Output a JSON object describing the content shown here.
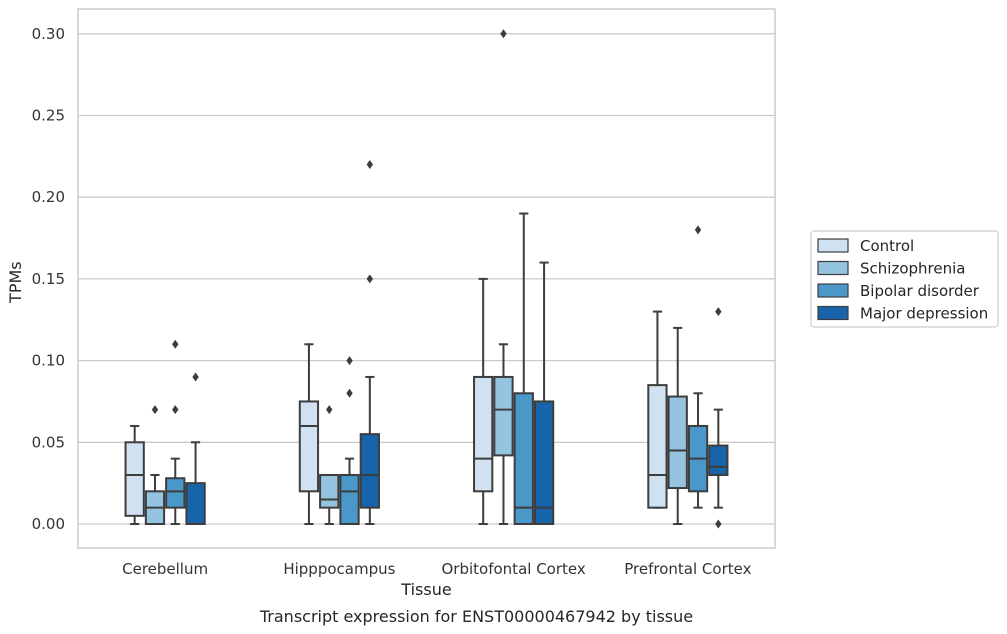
{
  "caption": "Transcript expression for ENST00000467942 by tissue",
  "chart_data": {
    "type": "box",
    "xlabel": "Tissue",
    "ylabel": "TPMs",
    "ylim": [
      -0.015,
      0.315
    ],
    "yticks": [
      "0.00",
      "0.05",
      "0.10",
      "0.15",
      "0.20",
      "0.25",
      "0.30"
    ],
    "grid": "horizontal",
    "legend_position": "right",
    "categories": [
      "Cerebellum",
      "Hipppocampus",
      "Orbitofontal Cortex",
      "Prefrontal Cortex"
    ],
    "colors": {
      "Control": "#d0e1f2",
      "Schizophrenia": "#94c4df",
      "Bipolar disorder": "#4a98c9",
      "Major depression": "#1764ab"
    },
    "series": [
      {
        "name": "Control",
        "boxes": [
          {
            "whislo": 0.0,
            "q1": 0.005,
            "med": 0.03,
            "q3": 0.05,
            "whishi": 0.06,
            "fliers": []
          },
          {
            "whislo": 0.0,
            "q1": 0.02,
            "med": 0.06,
            "q3": 0.075,
            "whishi": 0.11,
            "fliers": []
          },
          {
            "whislo": 0.0,
            "q1": 0.02,
            "med": 0.04,
            "q3": 0.09,
            "whishi": 0.15,
            "fliers": []
          },
          {
            "whislo": 0.01,
            "q1": 0.01,
            "med": 0.03,
            "q3": 0.085,
            "whishi": 0.13,
            "fliers": []
          }
        ]
      },
      {
        "name": "Schizophrenia",
        "boxes": [
          {
            "whislo": 0.0,
            "q1": 0.0,
            "med": 0.01,
            "q3": 0.02,
            "whishi": 0.03,
            "fliers": [
              0.07
            ]
          },
          {
            "whislo": 0.0,
            "q1": 0.01,
            "med": 0.015,
            "q3": 0.03,
            "whishi": 0.03,
            "fliers": [
              0.07
            ]
          },
          {
            "whislo": 0.0,
            "q1": 0.042,
            "med": 0.07,
            "q3": 0.09,
            "whishi": 0.11,
            "fliers": [
              0.3
            ]
          },
          {
            "whislo": 0.0,
            "q1": 0.022,
            "med": 0.045,
            "q3": 0.078,
            "whishi": 0.12,
            "fliers": []
          }
        ]
      },
      {
        "name": "Bipolar disorder",
        "boxes": [
          {
            "whislo": 0.0,
            "q1": 0.01,
            "med": 0.02,
            "q3": 0.028,
            "whishi": 0.04,
            "fliers": [
              0.07,
              0.11
            ]
          },
          {
            "whislo": 0.0,
            "q1": 0.0,
            "med": 0.02,
            "q3": 0.03,
            "whishi": 0.04,
            "fliers": [
              0.08,
              0.1
            ]
          },
          {
            "whislo": 0.0,
            "q1": 0.0,
            "med": 0.01,
            "q3": 0.08,
            "whishi": 0.19,
            "fliers": []
          },
          {
            "whislo": 0.01,
            "q1": 0.02,
            "med": 0.04,
            "q3": 0.06,
            "whishi": 0.08,
            "fliers": [
              0.18
            ]
          }
        ]
      },
      {
        "name": "Major depression",
        "boxes": [
          {
            "whislo": 0.0,
            "q1": 0.0,
            "med": 0.0,
            "q3": 0.025,
            "whishi": 0.05,
            "fliers": [
              0.09
            ]
          },
          {
            "whislo": 0.0,
            "q1": 0.01,
            "med": 0.03,
            "q3": 0.055,
            "whishi": 0.09,
            "fliers": [
              0.15,
              0.22
            ]
          },
          {
            "whislo": 0.0,
            "q1": 0.0,
            "med": 0.01,
            "q3": 0.075,
            "whishi": 0.16,
            "fliers": []
          },
          {
            "whislo": 0.01,
            "q1": 0.03,
            "med": 0.035,
            "q3": 0.048,
            "whishi": 0.07,
            "fliers": [
              0.0,
              0.13
            ]
          }
        ]
      }
    ]
  }
}
